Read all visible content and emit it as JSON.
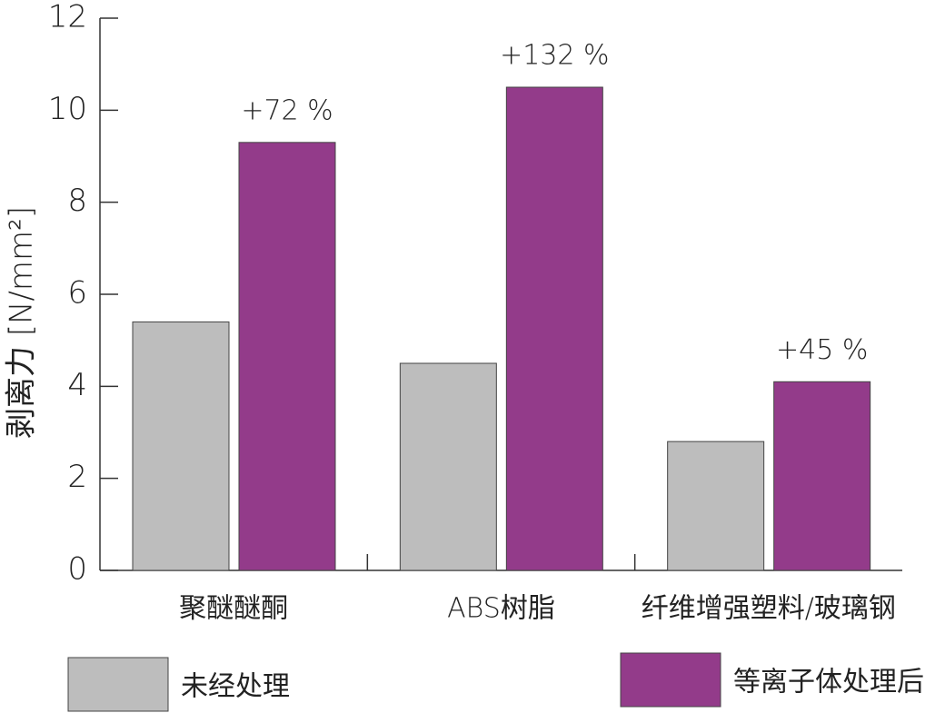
{
  "chart_data": {
    "type": "bar",
    "y_label": "剥离力 [N/mm²]",
    "categories": [
      "聚醚醚酮",
      "ABS树脂",
      "纤维增强塑料/玻璃钢"
    ],
    "series": [
      {
        "name": "未经处理",
        "color": "#bdbdbd",
        "values": [
          5.4,
          4.5,
          2.8
        ]
      },
      {
        "name": "等离子体处理后",
        "color": "#933b8a",
        "values": [
          9.3,
          10.5,
          4.1
        ]
      }
    ],
    "annotations": [
      "+72 %",
      "+132 %",
      "+45 %"
    ],
    "ylim": [
      0,
      12
    ],
    "yticks": [
      0,
      2,
      4,
      6,
      8,
      10,
      12
    ]
  }
}
